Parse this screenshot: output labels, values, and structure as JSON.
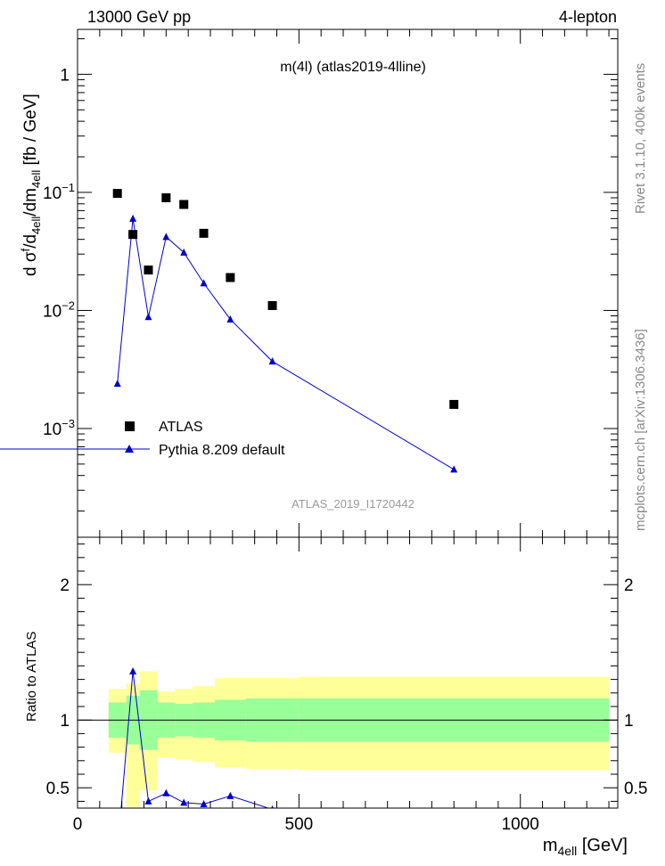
{
  "header": {
    "left": "13000 GeV pp",
    "right": "4-lepton"
  },
  "side": {
    "rivet": "Rivet 3.1.10,  400k events",
    "mcplots": "mcplots.cern.ch [arXiv:1306.3436]"
  },
  "colors": {
    "data": "#000000",
    "mc": "#0000cc",
    "band_inner": "#99ff99",
    "band_outer": "#ffff99"
  },
  "chart_data": [
    {
      "type": "scatter",
      "title": "m(4l) (atlas2019-4lline)",
      "watermark": "ATLAS_2019_I1720442",
      "ylabel": "d σ^{f}/d_{4ell}/dm_{4ell} [fb / GeV]",
      "yscale": "log",
      "ylim": [
        0.00012,
        2.4
      ],
      "xlim": [
        0,
        1220
      ],
      "yticks": [
        {
          "value": 0.001,
          "base": "10",
          "exp": "−3"
        },
        {
          "value": 0.01,
          "base": "10",
          "exp": "−2"
        },
        {
          "value": 0.1,
          "base": "10",
          "exp": "−1"
        },
        {
          "value": 1,
          "base": "1",
          "exp": ""
        }
      ],
      "legend": {
        "position": "bottom-left"
      },
      "series": [
        {
          "name": "ATLAS",
          "marker": "square",
          "x": [
            90,
            125,
            160,
            200,
            240,
            285,
            345,
            440,
            850
          ],
          "y": [
            0.098,
            0.044,
            0.022,
            0.09,
            0.079,
            0.045,
            0.019,
            0.011,
            0.0016
          ]
        },
        {
          "name": "Pythia 8.209 default",
          "marker": "triangle",
          "x": [
            90,
            125,
            160,
            200,
            240,
            285,
            345,
            440,
            850
          ],
          "y": [
            0.0024,
            0.06,
            0.0088,
            0.042,
            0.031,
            0.017,
            0.0084,
            0.0037,
            0.00045
          ]
        }
      ]
    },
    {
      "type": "line",
      "ylabel": "Ratio to ATLAS",
      "xlabel": "m_{4ell} [GeV]",
      "xlim": [
        0,
        1220
      ],
      "ylim": [
        0.35,
        2.35
      ],
      "xticks": [
        "0",
        "500",
        "1000"
      ],
      "yticks": [
        {
          "value": 0.5,
          "label": "0.5"
        },
        {
          "value": 1,
          "label": "1"
        },
        {
          "value": 2,
          "label": "2"
        }
      ],
      "bins": [
        70,
        110,
        140,
        180,
        220,
        260,
        310,
        380,
        500,
        1200
      ],
      "band_inner": {
        "low": [
          0.87,
          0.82,
          0.78,
          0.87,
          0.88,
          0.87,
          0.85,
          0.84,
          0.84
        ],
        "high": [
          1.13,
          1.18,
          1.22,
          1.13,
          1.12,
          1.13,
          1.15,
          1.16,
          1.16
        ]
      },
      "band_outer": {
        "low": [
          0.76,
          0.36,
          0.48,
          0.72,
          0.71,
          0.69,
          0.65,
          0.64,
          0.63
        ],
        "high": [
          1.23,
          1.27,
          1.36,
          1.21,
          1.23,
          1.25,
          1.31,
          1.31,
          1.32
        ]
      },
      "series": [
        {
          "name": "Pythia 8.209 default",
          "x": [
            90,
            125,
            160,
            200,
            240,
            285,
            345,
            440,
            850
          ],
          "y": [
            0.024,
            1.36,
            0.4,
            0.46,
            0.39,
            0.38,
            0.44,
            0.34,
            0.28
          ]
        }
      ]
    }
  ]
}
